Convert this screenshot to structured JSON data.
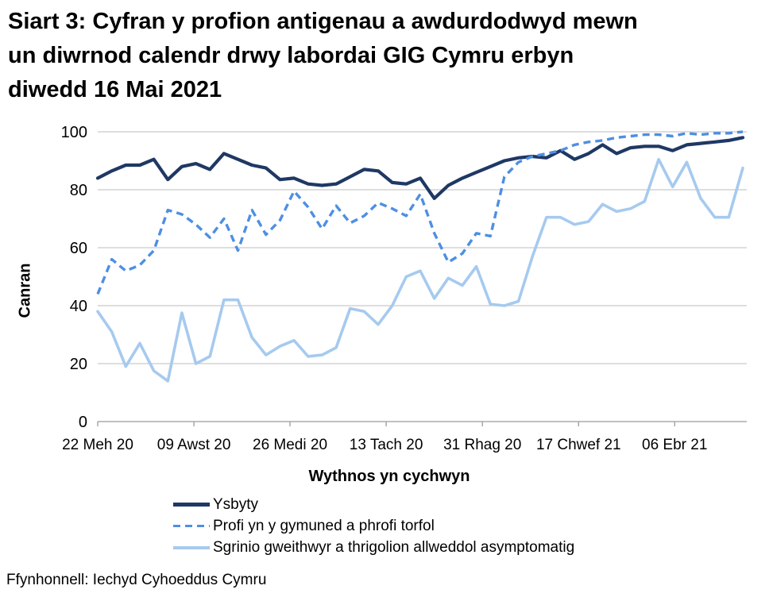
{
  "title": {
    "lines": [
      "Siart 3: Cyfran y profion antigenau a awdurdodwyd mewn",
      "un diwrnod calendr drwy labordai GIG Cymru erbyn",
      "diwedd 16 Mai 2021"
    ]
  },
  "source": {
    "text": "Ffynhonnell: Iechyd Cyhoeddus Cymru"
  },
  "chart_data": {
    "type": "line",
    "title": "Siart 3: Cyfran y profion antigenau a awdurdodwyd mewn un diwrnod calendr drwy labordai GIG Cymru erbyn diwedd 16 Mai 2021",
    "xlabel": "Wythnos yn cychwyn",
    "ylabel": "Canran",
    "ylim": [
      0,
      100
    ],
    "yticks": [
      0,
      20,
      40,
      60,
      80,
      100
    ],
    "grid": "horizontal",
    "grid_color": "#C9C9C9",
    "axis_color": "#9B9B9B",
    "x_frequency": "weekly",
    "n_points": 47,
    "xticks": [
      {
        "pos": 0,
        "label": "22 Meh 20"
      },
      {
        "pos": 6.86,
        "label": "09 Awst 20"
      },
      {
        "pos": 13.71,
        "label": "26 Medi 20"
      },
      {
        "pos": 20.57,
        "label": "13 Tach 20"
      },
      {
        "pos": 27.43,
        "label": "31 Rhag 20"
      },
      {
        "pos": 34.29,
        "label": "17 Chwef 21"
      },
      {
        "pos": 41.14,
        "label": "06 Ebr 21"
      }
    ],
    "legend_position": "bottom-left",
    "series": [
      {
        "name": "Ysbyty",
        "color": "#1F3864",
        "style": "solid",
        "width": 4.2,
        "values": [
          84,
          86.5,
          88.5,
          88.5,
          90.5,
          83.5,
          88,
          89,
          87,
          92.5,
          90.5,
          88.5,
          87.5,
          83.5,
          84,
          82,
          81.5,
          82,
          84.5,
          87,
          86.5,
          82.5,
          82,
          84,
          77,
          81.5,
          84,
          86,
          88,
          90,
          91,
          91.5,
          91,
          93.5,
          90.5,
          92.5,
          95.5,
          92.5,
          94.5,
          95,
          95,
          93.5,
          95.5,
          96,
          96.5,
          97,
          98
        ]
      },
      {
        "name": "Profi yn y gymuned a phrofi torfol",
        "color": "#4D8FE3",
        "style": "dashed",
        "width": 3.4,
        "values": [
          44,
          56,
          52,
          54,
          59,
          73,
          71.5,
          68,
          63.5,
          70,
          59,
          73,
          64.5,
          69.5,
          79.5,
          74,
          66.5,
          74.5,
          68.5,
          71,
          75.5,
          73.5,
          71,
          78.5,
          65,
          55,
          58,
          65,
          64,
          84.5,
          89.5,
          91.5,
          92.5,
          93.5,
          95.5,
          96.5,
          97,
          98,
          98.5,
          99,
          99,
          98.5,
          99.5,
          99,
          99.5,
          99.5,
          100
        ]
      },
      {
        "name": "Sgrinio gweithwyr a thrigolion allweddol asymptomatig",
        "color": "#A6CAEF",
        "style": "solid",
        "width": 3.6,
        "values": [
          38,
          31,
          19,
          27,
          17.5,
          14,
          37.5,
          20,
          22.5,
          42,
          42,
          29,
          23,
          26,
          28,
          22.5,
          23,
          25.5,
          39,
          38,
          33.5,
          40,
          50,
          52,
          42.5,
          49.5,
          47,
          53.5,
          40.5,
          40,
          41.5,
          57,
          70.5,
          70.5,
          68,
          69,
          75,
          72.5,
          73.5,
          76,
          90.5,
          81,
          89.5,
          77,
          70.5,
          70.5,
          87.5
        ]
      }
    ]
  }
}
